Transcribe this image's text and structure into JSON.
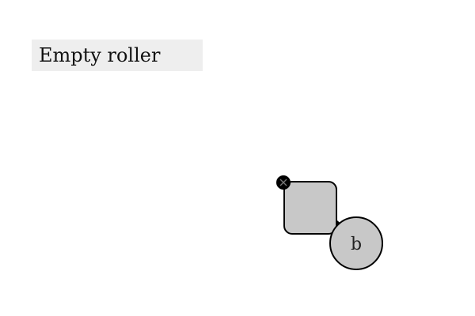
{
  "title": "Empty roller",
  "nodes": {
    "square": {
      "label": "",
      "fill": "#c8c8c8"
    },
    "circle": {
      "label": "b",
      "fill": "#c8c8c8"
    }
  },
  "colors": {
    "stroke": "#000000",
    "title_bg": "#eeeeee",
    "background": "#ffffff"
  },
  "icons": {
    "handle": "close-x-icon"
  }
}
